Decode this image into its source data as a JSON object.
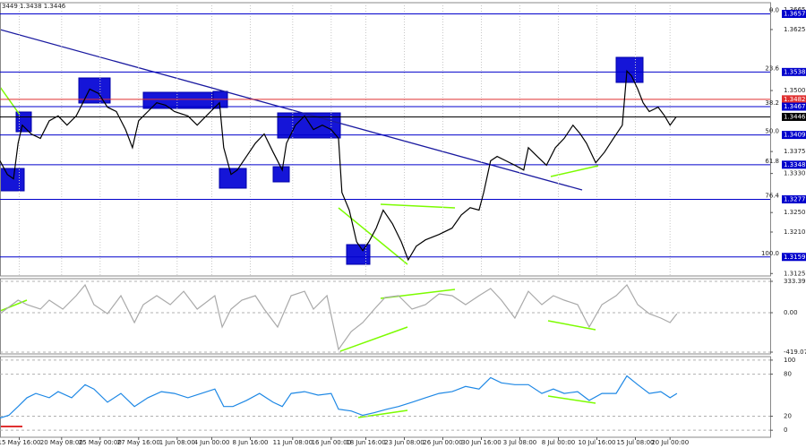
{
  "chart_data": [
    {
      "type": "line",
      "title": "3449 1.3438 1.3446",
      "color": "#000000",
      "grid": true,
      "xlim": [
        0,
        200
      ],
      "ylim": [
        1.312,
        1.368
      ],
      "xticks": [
        {
          "value": 5,
          "label": "15 May 16:00"
        },
        {
          "value": 16,
          "label": "20 May 08:00"
        },
        {
          "value": 26,
          "label": "25 May 00:00"
        },
        {
          "value": 36,
          "label": "27 May 16:00"
        },
        {
          "value": 46,
          "label": "1 Jun 08:00"
        },
        {
          "value": 55,
          "label": "4 Jun 00:00"
        },
        {
          "value": 65,
          "label": "8 Jun 16:00"
        },
        {
          "value": 76,
          "label": "11 Jun 08:00"
        },
        {
          "value": 86,
          "label": "16 Jun 00:00"
        },
        {
          "value": 95,
          "label": "18 Jun 16:00"
        },
        {
          "value": 105,
          "label": "23 Jun 08:00"
        },
        {
          "value": 115,
          "label": "26 Jun 00:00"
        },
        {
          "value": 125,
          "label": "30 Jun 16:00"
        },
        {
          "value": 135,
          "label": "3 Jul 08:00"
        },
        {
          "value": 145,
          "label": "8 Jul 00:00"
        },
        {
          "value": 155,
          "label": "10 Jul 16:00"
        },
        {
          "value": 165,
          "label": "15 Jul 08:00"
        },
        {
          "value": 174,
          "label": "20 Jul 00:00"
        }
      ],
      "yticks": [
        1.3665,
        1.3625,
        {
          "value": 1.35,
          "label": "1.3500"
        },
        1.3375,
        {
          "value": 1.333,
          "label": "1.3330"
        },
        {
          "value": 1.325,
          "label": "1.3250"
        },
        {
          "value": 1.321,
          "label": "1.3210"
        },
        1.3125
      ],
      "levels": [
        {
          "value": 1.3657,
          "fib": "0.0",
          "color": "#0000cc"
        },
        {
          "value": 1.3538,
          "fib": "23.6",
          "color": "#0000cc"
        },
        {
          "value": 1.3482,
          "color": "#e03030"
        },
        {
          "value": 1.3467,
          "fib": "38.2",
          "color": "#0000cc"
        },
        {
          "value": 1.3446,
          "color": "#000000"
        },
        {
          "value": 1.3409,
          "fib": "50.0",
          "color": "#0000cc"
        },
        {
          "value": 1.3348,
          "fib": "61.8",
          "color": "#0000cc"
        },
        {
          "value": 1.3277,
          "fib": "76.4",
          "color": "#0000cc"
        },
        {
          "value": 1.3159,
          "fib": "100.0",
          "color": "#0000cc"
        }
      ],
      "x": [
        0,
        1.9,
        3.5,
        4.7,
        5.8,
        8.1,
        10.5,
        12.8,
        15.1,
        17.4,
        19.8,
        22.1,
        23.3,
        25.6,
        27.9,
        30.2,
        32.6,
        34.4,
        36.0,
        38.4,
        40.7,
        43.0,
        45.3,
        48.8,
        51.2,
        54.7,
        57.0,
        58.1,
        60.0,
        61.6,
        64.0,
        66.3,
        68.6,
        70.9,
        73.3,
        74.4,
        76.7,
        79.1,
        81.4,
        83.7,
        86.0,
        87.9,
        88.8,
        90.7,
        92.6,
        94.2,
        95.8,
        97.7,
        99.5,
        101.9,
        104.2,
        106.0,
        108.1,
        110.5,
        114.0,
        117.4,
        119.8,
        122.1,
        124.4,
        125.6,
        127.4,
        129.1,
        131.4,
        133.7,
        136.0,
        137.2,
        139.5,
        141.9,
        144.2,
        146.5,
        148.8,
        150.7,
        152.3,
        154.7,
        157.0,
        159.3,
        161.6,
        162.8,
        164.0,
        165.6,
        167.0,
        168.6,
        170.9,
        172.6,
        174.0,
        175.6
      ],
      "values": [
        1.3356,
        1.3328,
        1.3319,
        1.3392,
        1.3429,
        1.3411,
        1.3402,
        1.3438,
        1.3448,
        1.3429,
        1.3448,
        1.3484,
        1.3503,
        1.3494,
        1.3466,
        1.3457,
        1.342,
        1.3383,
        1.3438,
        1.3457,
        1.3475,
        1.347,
        1.3457,
        1.3448,
        1.3429,
        1.3457,
        1.3475,
        1.3383,
        1.3328,
        1.3337,
        1.3365,
        1.3392,
        1.3411,
        1.3374,
        1.3337,
        1.3392,
        1.3429,
        1.3448,
        1.342,
        1.3429,
        1.342,
        1.3402,
        1.3291,
        1.3255,
        1.319,
        1.3172,
        1.319,
        1.3218,
        1.3255,
        1.3227,
        1.319,
        1.3153,
        1.3181,
        1.3194,
        1.3205,
        1.3218,
        1.3245,
        1.326,
        1.3255,
        1.3291,
        1.3356,
        1.3365,
        1.3356,
        1.3347,
        1.3337,
        1.3383,
        1.3365,
        1.3347,
        1.3383,
        1.3402,
        1.3429,
        1.3411,
        1.3392,
        1.3352,
        1.3374,
        1.3402,
        1.3429,
        1.354,
        1.353,
        1.3503,
        1.3475,
        1.3457,
        1.3466,
        1.3448,
        1.3429,
        1.3446
      ]
    },
    {
      "type": "line",
      "color": "#a9a9a9",
      "grid": true,
      "xlim": [
        0,
        200
      ],
      "ylim": [
        -438,
        362
      ],
      "yticks": [
        333.3997,
        {
          "value": 0,
          "label": "0.00"
        },
        -419.071
      ],
      "x": [
        0,
        4.7,
        7.0,
        10.5,
        12.8,
        16.3,
        19.8,
        22.1,
        24.4,
        27.9,
        31.4,
        34.9,
        37.2,
        40.7,
        44.2,
        47.7,
        51.2,
        55.8,
        57.7,
        60.0,
        62.8,
        66.3,
        68.6,
        72.1,
        75.6,
        79.1,
        81.4,
        84.9,
        87.9,
        91.2,
        94.2,
        97.2,
        100.0,
        103.5,
        107.0,
        110.5,
        114.0,
        117.4,
        120.9,
        124.4,
        127.4,
        130.2,
        133.7,
        137.2,
        140.7,
        143.7,
        146.5,
        150.0,
        153.0,
        156.3,
        160.0,
        162.8,
        165.6,
        168.6,
        171.6,
        174.0,
        175.8
      ],
      "values": [
        -10,
        133,
        86,
        38,
        133,
        38,
        181,
        295,
        86,
        -10,
        181,
        -105,
        86,
        181,
        86,
        228,
        38,
        181,
        -152,
        38,
        133,
        181,
        38,
        -152,
        181,
        228,
        38,
        181,
        -390,
        -200,
        -105,
        38,
        162,
        181,
        38,
        86,
        200,
        181,
        86,
        181,
        257,
        133,
        -57,
        228,
        86,
        181,
        133,
        86,
        -152,
        86,
        181,
        295,
        86,
        -10,
        -57,
        -105,
        -10
      ]
    },
    {
      "type": "line",
      "color": "#1e88e5",
      "grid": true,
      "xlim": [
        0,
        200
      ],
      "ylim": [
        -10,
        105
      ],
      "yticks": [
        100,
        80,
        20,
        0
      ],
      "x": [
        0,
        2.3,
        4.7,
        7.0,
        9.3,
        12.8,
        15.1,
        18.6,
        22.1,
        24.4,
        27.9,
        31.4,
        34.9,
        38.4,
        41.9,
        45.3,
        48.8,
        52.3,
        55.8,
        58.1,
        60.5,
        64.0,
        67.4,
        70.9,
        73.3,
        75.6,
        79.1,
        82.6,
        86.0,
        87.9,
        91.2,
        94.2,
        97.2,
        100.5,
        103.5,
        107.0,
        110.5,
        114.0,
        117.4,
        120.9,
        124.4,
        127.4,
        130.2,
        133.7,
        137.2,
        140.7,
        143.7,
        146.5,
        150.0,
        153.0,
        156.3,
        160.0,
        162.8,
        165.6,
        168.6,
        171.6,
        174.0,
        175.8
      ],
      "values": [
        17.5,
        21.3,
        33.8,
        46.3,
        52.5,
        46.3,
        55,
        46.3,
        65,
        58.8,
        40,
        52.5,
        33.8,
        46.3,
        55,
        52.5,
        46.3,
        52.5,
        58.8,
        33.8,
        33.8,
        42.5,
        52.5,
        40,
        33.8,
        52.5,
        55,
        50,
        52.5,
        30,
        27.5,
        21.3,
        25,
        30,
        33.8,
        40,
        46.3,
        52.5,
        55,
        62.5,
        58.8,
        75,
        67.5,
        65,
        65,
        52.5,
        58.8,
        52.5,
        55,
        42.5,
        52.5,
        52.5,
        77.5,
        65,
        52.5,
        55,
        46.3,
        52.5
      ]
    }
  ]
}
